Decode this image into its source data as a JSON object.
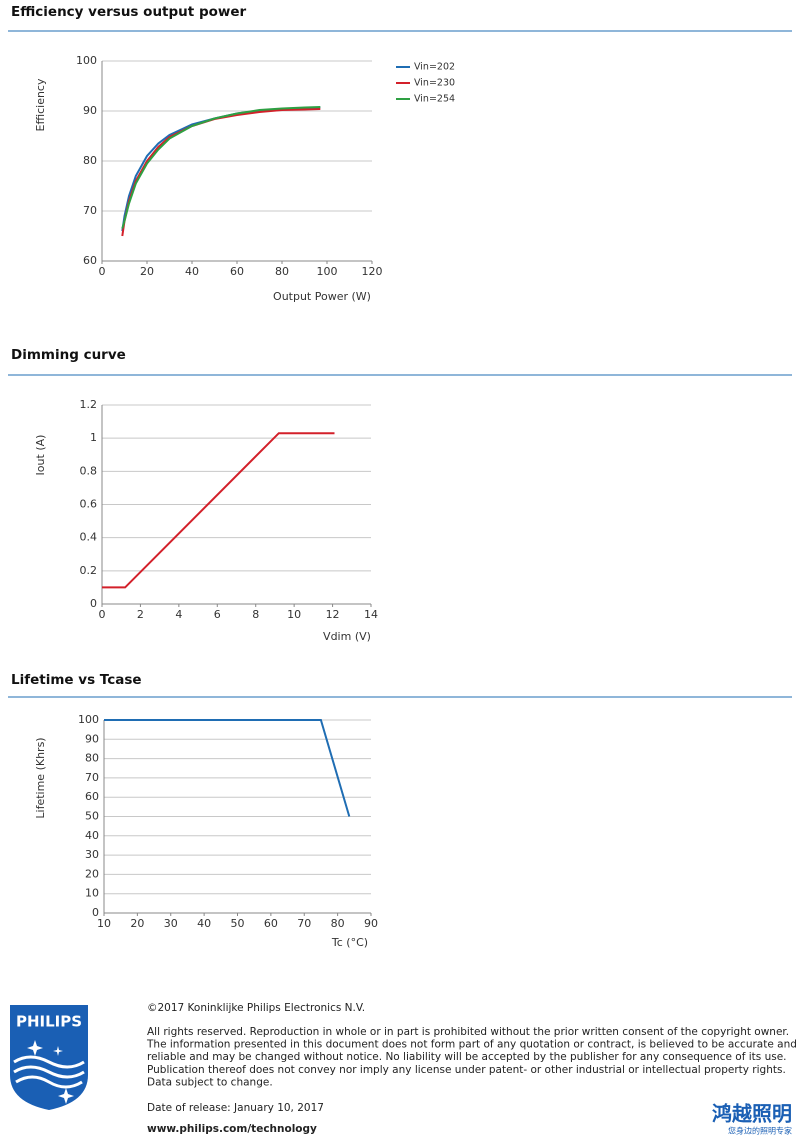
{
  "chart_data": [
    {
      "type": "line",
      "title": "Efficiency versus output power",
      "x_label": "Output Power (W)",
      "y_label": "Efficiency",
      "x": [
        9,
        10,
        12,
        15,
        20,
        25,
        30,
        40,
        50,
        60,
        70,
        80,
        90,
        97
      ],
      "series": [
        {
          "name": "Vin=202",
          "color": "#1f6db3",
          "values": [
            66,
            69,
            73,
            77,
            81,
            83.5,
            85.2,
            87.3,
            88.5,
            89.5,
            90.1,
            90.4,
            90.6,
            90.7
          ]
        },
        {
          "name": "Vin=230",
          "color": "#d3202a",
          "values": [
            65,
            68,
            72,
            76,
            80,
            82.8,
            84.8,
            87.0,
            88.4,
            89.2,
            89.8,
            90.2,
            90.3,
            90.4
          ]
        },
        {
          "name": "Vin=254",
          "color": "#2ea043",
          "values": [
            66.5,
            68,
            71.5,
            75.5,
            79.5,
            82.3,
            84.5,
            87.0,
            88.5,
            89.5,
            90.2,
            90.5,
            90.7,
            90.8
          ]
        }
      ],
      "xlim": [
        0,
        120
      ],
      "xticks": [
        0,
        20,
        40,
        60,
        80,
        100,
        120
      ],
      "ylim": [
        60,
        100
      ],
      "yticks": [
        60,
        70,
        80,
        90,
        100
      ],
      "grid": true,
      "legend": "right"
    },
    {
      "type": "line",
      "title": "Dimming curve",
      "x_label": "Vdim (V)",
      "y_label": "Iout (A)",
      "x": [
        0,
        1.2,
        9.2,
        12.1
      ],
      "series": [
        {
          "color": "#d3202a",
          "values": [
            0.1,
            0.1,
            1.03,
            1.03
          ]
        }
      ],
      "xlim": [
        0,
        14
      ],
      "xticks": [
        0,
        2,
        4,
        6,
        8,
        10,
        12,
        14
      ],
      "ylim": [
        0,
        1.2
      ],
      "yticks": [
        0,
        0.2,
        0.4,
        0.6,
        0.8,
        1,
        1.2
      ],
      "grid": true
    },
    {
      "type": "line",
      "title": "Lifetime vs Tcase",
      "x_label": "Tc (°C)",
      "y_label": "Lifetime (Khrs)",
      "x": [
        10,
        75,
        83.5
      ],
      "series": [
        {
          "color": "#1f6db3",
          "values": [
            100,
            100,
            50
          ]
        }
      ],
      "xlim": [
        10,
        90
      ],
      "xticks": [
        10,
        20,
        30,
        40,
        50,
        60,
        70,
        80,
        90
      ],
      "ylim": [
        0,
        100
      ],
      "yticks": [
        0,
        10,
        20,
        30,
        40,
        50,
        60,
        70,
        80,
        90,
        100
      ],
      "grid": true
    }
  ],
  "footer": {
    "logo": "PHILIPS",
    "copyright": "©2017 Koninklijke Philips Electronics N.V.",
    "disclaimer": [
      "All rights reserved. Reproduction in whole or in part is prohibited without the prior written consent of the copyright owner.",
      "The information presented in this document does not form part of any quotation or contract, is believed to be accurate and",
      "reliable and may be changed without notice. No liability will be accepted by the publisher for any consequence of its use.",
      "Publication thereof does not convey nor imply any license under patent- or other industrial or intellectual property rights.",
      "Data subject to change."
    ],
    "release": "Date of release: January 10, 2017",
    "website": "www.philips.com/technology",
    "watermark": "鸿越照明",
    "watermark_sub": "您身边的照明专家"
  }
}
